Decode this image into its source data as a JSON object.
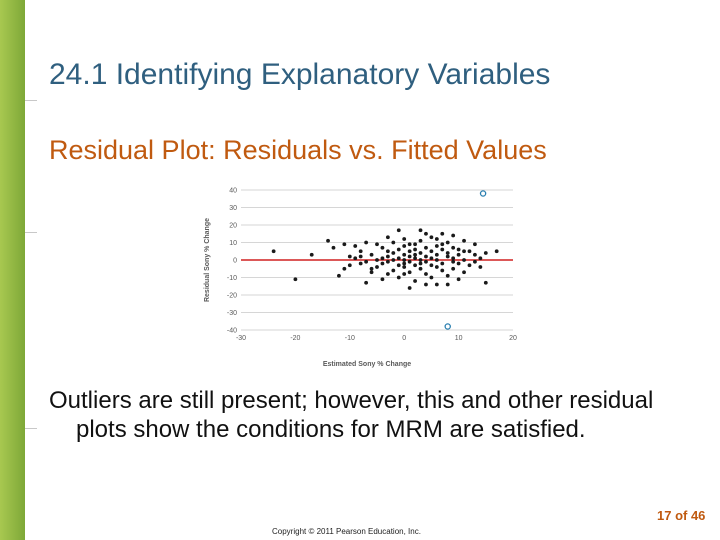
{
  "slide": {
    "title": "24.1 Identifying Explanatory Variables",
    "subtitle": "Residual Plot:  Residuals vs. Fitted Values",
    "body": "Outliers are still present; however, this and other residual plots show the conditions for MRM are satisfied.",
    "page_number": "17 of 46",
    "copyright": "Copyright © 2011 Pearson Education, Inc.",
    "accent_color": "#c05a10",
    "title_color": "#2f5f7f",
    "sidebar_color": "#8cb43c"
  },
  "chart_data": {
    "type": "scatter",
    "xlabel": "Estimated Sony % Change",
    "ylabel": "Residual Sony % Change",
    "xlim": [
      -30,
      20
    ],
    "ylim": [
      -40,
      40
    ],
    "xticks": [
      -30,
      -20,
      -10,
      0,
      10,
      20
    ],
    "yticks": [
      40,
      30,
      20,
      10,
      0,
      -10,
      -20,
      -30,
      -40
    ],
    "grid": true,
    "reference_line": {
      "y": 0,
      "color": "#d02020"
    },
    "point_color": "#1a1a1a",
    "outlier_color": "#2a7fb0",
    "points": [
      [
        -24,
        5
      ],
      [
        -20,
        -11
      ],
      [
        -17,
        3
      ],
      [
        -14,
        11
      ],
      [
        -13,
        7
      ],
      [
        -12,
        -9
      ],
      [
        -11,
        -5
      ],
      [
        -10,
        -3
      ],
      [
        -9,
        1
      ],
      [
        -8,
        2
      ],
      [
        -8,
        -2
      ],
      [
        -8,
        5
      ],
      [
        -7,
        -13
      ],
      [
        -7,
        -1
      ],
      [
        -6,
        -5
      ],
      [
        -6,
        3
      ],
      [
        -5,
        9
      ],
      [
        -5,
        0
      ],
      [
        -5,
        -4
      ],
      [
        -4,
        7
      ],
      [
        -4,
        -2
      ],
      [
        -4,
        1
      ],
      [
        -3,
        2
      ],
      [
        -3,
        -8
      ],
      [
        -3,
        13
      ],
      [
        -3,
        -1
      ],
      [
        -2,
        4
      ],
      [
        -2,
        0
      ],
      [
        -2,
        -6
      ],
      [
        -2,
        10
      ],
      [
        -1,
        -3
      ],
      [
        -1,
        1
      ],
      [
        -1,
        6
      ],
      [
        -1,
        -10
      ],
      [
        -1,
        17
      ],
      [
        0,
        3
      ],
      [
        0,
        -2
      ],
      [
        0,
        8
      ],
      [
        0,
        -4
      ],
      [
        0,
        12
      ],
      [
        0,
        0
      ],
      [
        1,
        5
      ],
      [
        1,
        -1
      ],
      [
        1,
        -7
      ],
      [
        1,
        2
      ],
      [
        1,
        9
      ],
      [
        2,
        1
      ],
      [
        2,
        -3
      ],
      [
        2,
        6
      ],
      [
        2,
        -12
      ],
      [
        2,
        3
      ],
      [
        3,
        0
      ],
      [
        3,
        4
      ],
      [
        3,
        -5
      ],
      [
        3,
        11
      ],
      [
        3,
        -2
      ],
      [
        4,
        2
      ],
      [
        4,
        -8
      ],
      [
        4,
        7
      ],
      [
        4,
        -1
      ],
      [
        4,
        15
      ],
      [
        5,
        5
      ],
      [
        5,
        -3
      ],
      [
        5,
        1
      ],
      [
        5,
        -10
      ],
      [
        6,
        8
      ],
      [
        6,
        0
      ],
      [
        6,
        -4
      ],
      [
        6,
        12
      ],
      [
        6,
        3
      ],
      [
        7,
        -6
      ],
      [
        7,
        6
      ],
      [
        7,
        -2
      ],
      [
        7,
        9
      ],
      [
        8,
        2
      ],
      [
        8,
        -9
      ],
      [
        8,
        -14
      ],
      [
        8,
        10
      ],
      [
        8,
        4
      ],
      [
        9,
        -1
      ],
      [
        9,
        14
      ],
      [
        9,
        7
      ],
      [
        9,
        -5
      ],
      [
        10,
        3
      ],
      [
        10,
        6
      ],
      [
        10,
        -2
      ],
      [
        11,
        11
      ],
      [
        11,
        0
      ],
      [
        11,
        -7
      ],
      [
        12,
        5
      ],
      [
        12,
        -3
      ],
      [
        13,
        9
      ],
      [
        13,
        -1
      ],
      [
        14,
        1
      ],
      [
        14,
        -4
      ],
      [
        15,
        -13
      ],
      [
        17,
        5
      ],
      [
        -9,
        8
      ],
      [
        -6,
        -7
      ],
      [
        -3,
        5
      ],
      [
        0,
        -8
      ],
      [
        2,
        9
      ],
      [
        5,
        13
      ],
      [
        7,
        15
      ],
      [
        10,
        -11
      ],
      [
        13,
        3
      ],
      [
        3,
        17
      ],
      [
        6,
        -14
      ],
      [
        9,
        1
      ],
      [
        -7,
        10
      ],
      [
        -10,
        2
      ],
      [
        -11,
        9
      ],
      [
        -4,
        -11
      ],
      [
        1,
        -16
      ],
      [
        4,
        -14
      ],
      [
        11,
        5
      ],
      [
        15,
        4
      ]
    ],
    "outliers": [
      [
        14.5,
        38
      ],
      [
        8,
        -38
      ]
    ]
  }
}
